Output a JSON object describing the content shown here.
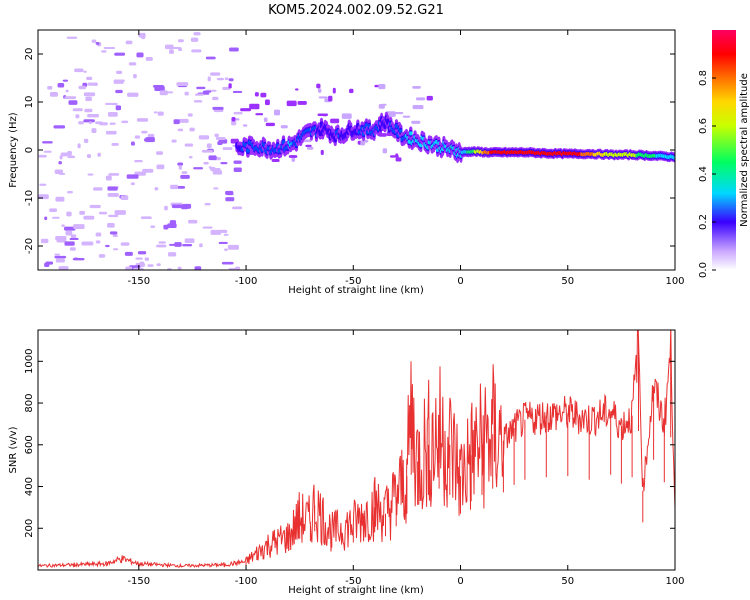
{
  "title": "KOM5.2024.002.09.52.G21",
  "chart_data": [
    {
      "type": "heatmap",
      "xlabel": "Height of straight line (km)",
      "ylabel": "Frequency (Hz)",
      "xlim": [
        -197,
        100
      ],
      "ylim": [
        -25,
        25
      ],
      "xticks": [
        -150,
        -100,
        -50,
        0,
        50,
        100
      ],
      "xtick_labels": [
        "-150",
        "-100",
        "-50",
        "0",
        "50",
        "100"
      ],
      "yticks": [
        -20,
        -10,
        0,
        10,
        20
      ],
      "ytick_labels": [
        "-20",
        "-10",
        "0",
        "10",
        "20"
      ],
      "colorbar": {
        "label": "Normalized spectral amplitude",
        "range": [
          0,
          1
        ],
        "ticks": [
          0.0,
          0.2,
          0.4,
          0.6,
          0.8
        ],
        "tick_labels": [
          "0.0",
          "0.2",
          "0.4",
          "0.6",
          "0.8"
        ],
        "colormap": [
          "#ffffff",
          "#c9a6ff",
          "#9b30ff",
          "#3a00ff",
          "#0050ff",
          "#00d8ff",
          "#00ff60",
          "#c8ff00",
          "#ffd800",
          "#ff7000",
          "#ff0000",
          "#ff0060"
        ]
      },
      "ridge": [
        {
          "x": -105,
          "y": 0.5,
          "a": 0.3
        },
        {
          "x": -95,
          "y": 0.8,
          "a": 0.4
        },
        {
          "x": -88,
          "y": 0.3,
          "a": 0.35
        },
        {
          "x": -80,
          "y": 1.0,
          "a": 0.42
        },
        {
          "x": -72,
          "y": 3.5,
          "a": 0.35
        },
        {
          "x": -65,
          "y": 4.5,
          "a": 0.3
        },
        {
          "x": -58,
          "y": 3.0,
          "a": 0.32
        },
        {
          "x": -50,
          "y": 4.5,
          "a": 0.3
        },
        {
          "x": -42,
          "y": 4.0,
          "a": 0.38
        },
        {
          "x": -36,
          "y": 6.0,
          "a": 0.28
        },
        {
          "x": -28,
          "y": 3.0,
          "a": 0.4
        },
        {
          "x": -20,
          "y": 2.0,
          "a": 0.45
        },
        {
          "x": -12,
          "y": 1.0,
          "a": 0.48
        },
        {
          "x": -5,
          "y": 0.0,
          "a": 0.5
        },
        {
          "x": 0,
          "y": -0.5,
          "a": 0.45
        },
        {
          "x": 5,
          "y": -0.3,
          "a": 0.55
        },
        {
          "x": 12,
          "y": -0.5,
          "a": 0.85
        },
        {
          "x": 20,
          "y": -0.5,
          "a": 0.95
        },
        {
          "x": 30,
          "y": -0.5,
          "a": 0.95
        },
        {
          "x": 40,
          "y": -0.7,
          "a": 0.9
        },
        {
          "x": 50,
          "y": -0.8,
          "a": 0.95
        },
        {
          "x": 60,
          "y": -0.8,
          "a": 0.8
        },
        {
          "x": 70,
          "y": -1.0,
          "a": 0.6
        },
        {
          "x": 80,
          "y": -1.0,
          "a": 0.6
        },
        {
          "x": 90,
          "y": -1.2,
          "a": 0.5
        },
        {
          "x": 100,
          "y": -1.5,
          "a": 0.45
        }
      ],
      "noise_region_x": [
        -197,
        -105
      ]
    },
    {
      "type": "line",
      "xlabel": "Height of straight line (km)",
      "ylabel": "SNR (v/v)",
      "xlim": [
        -197,
        100
      ],
      "ylim": [
        0,
        1150
      ],
      "xticks": [
        -150,
        -100,
        -50,
        0,
        50,
        100
      ],
      "xtick_labels": [
        "-150",
        "-100",
        "-50",
        "0",
        "50",
        "100"
      ],
      "yticks": [
        200,
        400,
        600,
        800,
        1000
      ],
      "ytick_labels": [
        "200",
        "400",
        "600",
        "800",
        "1000"
      ],
      "color": "#e83030",
      "series": [
        {
          "x": [
            -197,
            -180,
            -165,
            -158,
            -150,
            -130,
            -110,
            -100,
            -95,
            -90,
            -80,
            -75,
            -70,
            -68,
            -60,
            -50,
            -45,
            -40,
            -35,
            -30,
            -25,
            -23,
            -20,
            -15,
            -10,
            -5,
            0,
            5,
            10,
            15,
            20,
            25,
            30,
            40,
            50,
            60,
            70,
            75,
            80,
            83,
            85,
            90,
            95,
            98,
            100
          ],
          "y": [
            20,
            25,
            30,
            55,
            30,
            20,
            25,
            40,
            80,
            120,
            160,
            250,
            230,
            310,
            180,
            220,
            260,
            300,
            270,
            350,
            450,
            760,
            520,
            600,
            650,
            600,
            450,
            550,
            600,
            650,
            620,
            680,
            720,
            740,
            750,
            720,
            760,
            690,
            740,
            1110,
            380,
            880,
            700,
            1060,
            320
          ]
        }
      ]
    }
  ]
}
